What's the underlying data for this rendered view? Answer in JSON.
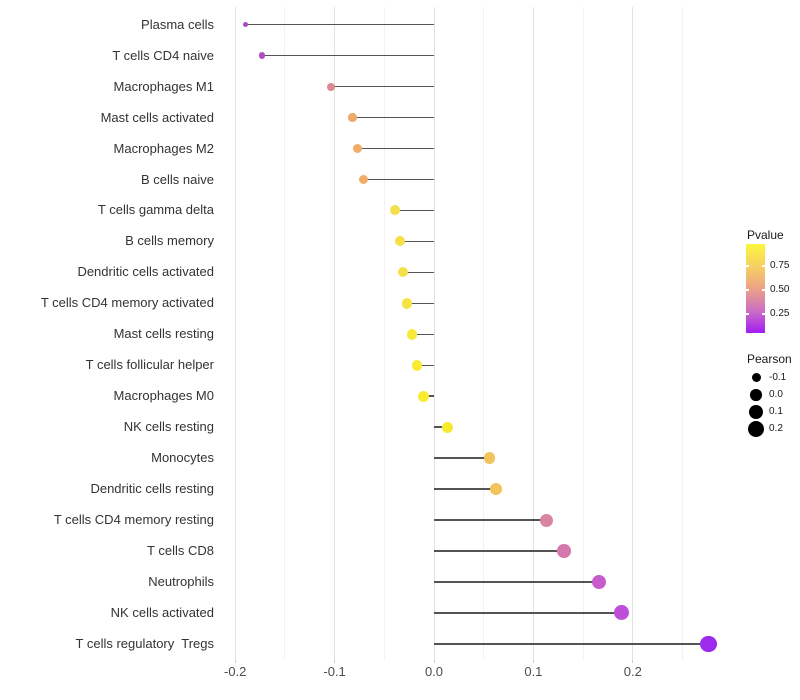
{
  "chart_data": {
    "type": "lollipop",
    "orientation": "horizontal",
    "title": "",
    "xlabel": "",
    "ylabel": "",
    "x_ticks": [
      -0.2,
      -0.1,
      0.0,
      0.1,
      0.2
    ],
    "x_tick_labels": [
      "-0.2",
      "-0.1",
      "0.0",
      "0.1",
      "0.2"
    ],
    "x_minor_ticks": [
      -0.15,
      -0.05,
      0.05,
      0.15,
      0.25
    ],
    "xlim": [
      -0.213,
      0.302
    ],
    "grid": "vertical major+minor, no horizontal",
    "background": "#ffffff",
    "stem_color": "#545454",
    "points": [
      {
        "label": "Plasma cells",
        "pearson": -0.19,
        "pvalue_approx": 0.15,
        "color": "#A94BC5",
        "size": 5
      },
      {
        "label": "T cells CD4 naive",
        "pearson": -0.173,
        "pvalue_approx": 0.16,
        "color": "#B04EC4",
        "size": 6.5
      },
      {
        "label": "Macrophages M1",
        "pearson": -0.104,
        "pvalue_approx": 0.42,
        "color": "#DB8A94",
        "size": 8
      },
      {
        "label": "Mast cells activated",
        "pearson": -0.082,
        "pvalue_approx": 0.55,
        "color": "#EFAA6B",
        "size": 8.5
      },
      {
        "label": "Macrophages M2",
        "pearson": -0.077,
        "pvalue_approx": 0.56,
        "color": "#F0AC69",
        "size": 9
      },
      {
        "label": "B cells naive",
        "pearson": -0.071,
        "pvalue_approx": 0.57,
        "color": "#F0AD69",
        "size": 9.5
      },
      {
        "label": "T cells gamma delta",
        "pearson": -0.039,
        "pvalue_approx": 0.85,
        "color": "#F3DE4C",
        "size": 10
      },
      {
        "label": "B cells memory",
        "pearson": -0.034,
        "pvalue_approx": 0.86,
        "color": "#F4E148",
        "size": 10
      },
      {
        "label": "Dendritic cells activated",
        "pearson": -0.031,
        "pvalue_approx": 0.87,
        "color": "#F4E148",
        "size": 10
      },
      {
        "label": "T cells CD4 memory activated",
        "pearson": -0.027,
        "pvalue_approx": 0.88,
        "color": "#F5E343",
        "size": 10.5
      },
      {
        "label": "Mast cells resting",
        "pearson": -0.022,
        "pvalue_approx": 0.9,
        "color": "#F7E93A",
        "size": 10.5
      },
      {
        "label": "T cells follicular helper",
        "pearson": -0.017,
        "pvalue_approx": 0.92,
        "color": "#F8EB33",
        "size": 10.5
      },
      {
        "label": "Macrophages M0",
        "pearson": -0.011,
        "pvalue_approx": 0.93,
        "color": "#F8EC30",
        "size": 11
      },
      {
        "label": "NK cells resting",
        "pearson": 0.014,
        "pvalue_approx": 0.93,
        "color": "#F7E92B",
        "size": 11
      },
      {
        "label": "Monocytes",
        "pearson": 0.056,
        "pvalue_approx": 0.7,
        "color": "#F1C45C",
        "size": 11.5
      },
      {
        "label": "Dendritic cells resting",
        "pearson": 0.062,
        "pvalue_approx": 0.7,
        "color": "#F1C45C",
        "size": 12
      },
      {
        "label": "T cells CD4 memory resting",
        "pearson": 0.113,
        "pvalue_approx": 0.38,
        "color": "#DA84A2",
        "size": 13
      },
      {
        "label": "T cells CD8",
        "pearson": 0.131,
        "pvalue_approx": 0.33,
        "color": "#D478AE",
        "size": 13.5
      },
      {
        "label": "Neutrophils",
        "pearson": 0.166,
        "pvalue_approx": 0.22,
        "color": "#C75BCB",
        "size": 14.5
      },
      {
        "label": "NK cells activated",
        "pearson": 0.189,
        "pvalue_approx": 0.18,
        "color": "#BC4ED8",
        "size": 15
      },
      {
        "label": "T cells regulatory  Tregs",
        "pearson": 0.276,
        "pvalue_approx": 0.05,
        "color": "#9C2BEB",
        "size": 16.5
      }
    ],
    "legends": {
      "pvalue": {
        "title": "Pvalue",
        "tick_labels": [
          "0.75",
          "0.50",
          "0.25"
        ],
        "gradient_top_to_bottom": [
          "#FCF63C",
          "#F6D063",
          "#ECA285",
          "#CC6EC4",
          "#A21DF2"
        ]
      },
      "pearson": {
        "title": "Pearson",
        "items": [
          {
            "label": "-0.1",
            "size": 9
          },
          {
            "label": "0.0",
            "size": 11.5
          },
          {
            "label": "0.1",
            "size": 14
          },
          {
            "label": "0.2",
            "size": 16
          }
        ],
        "dot_color": "#000000"
      }
    }
  }
}
